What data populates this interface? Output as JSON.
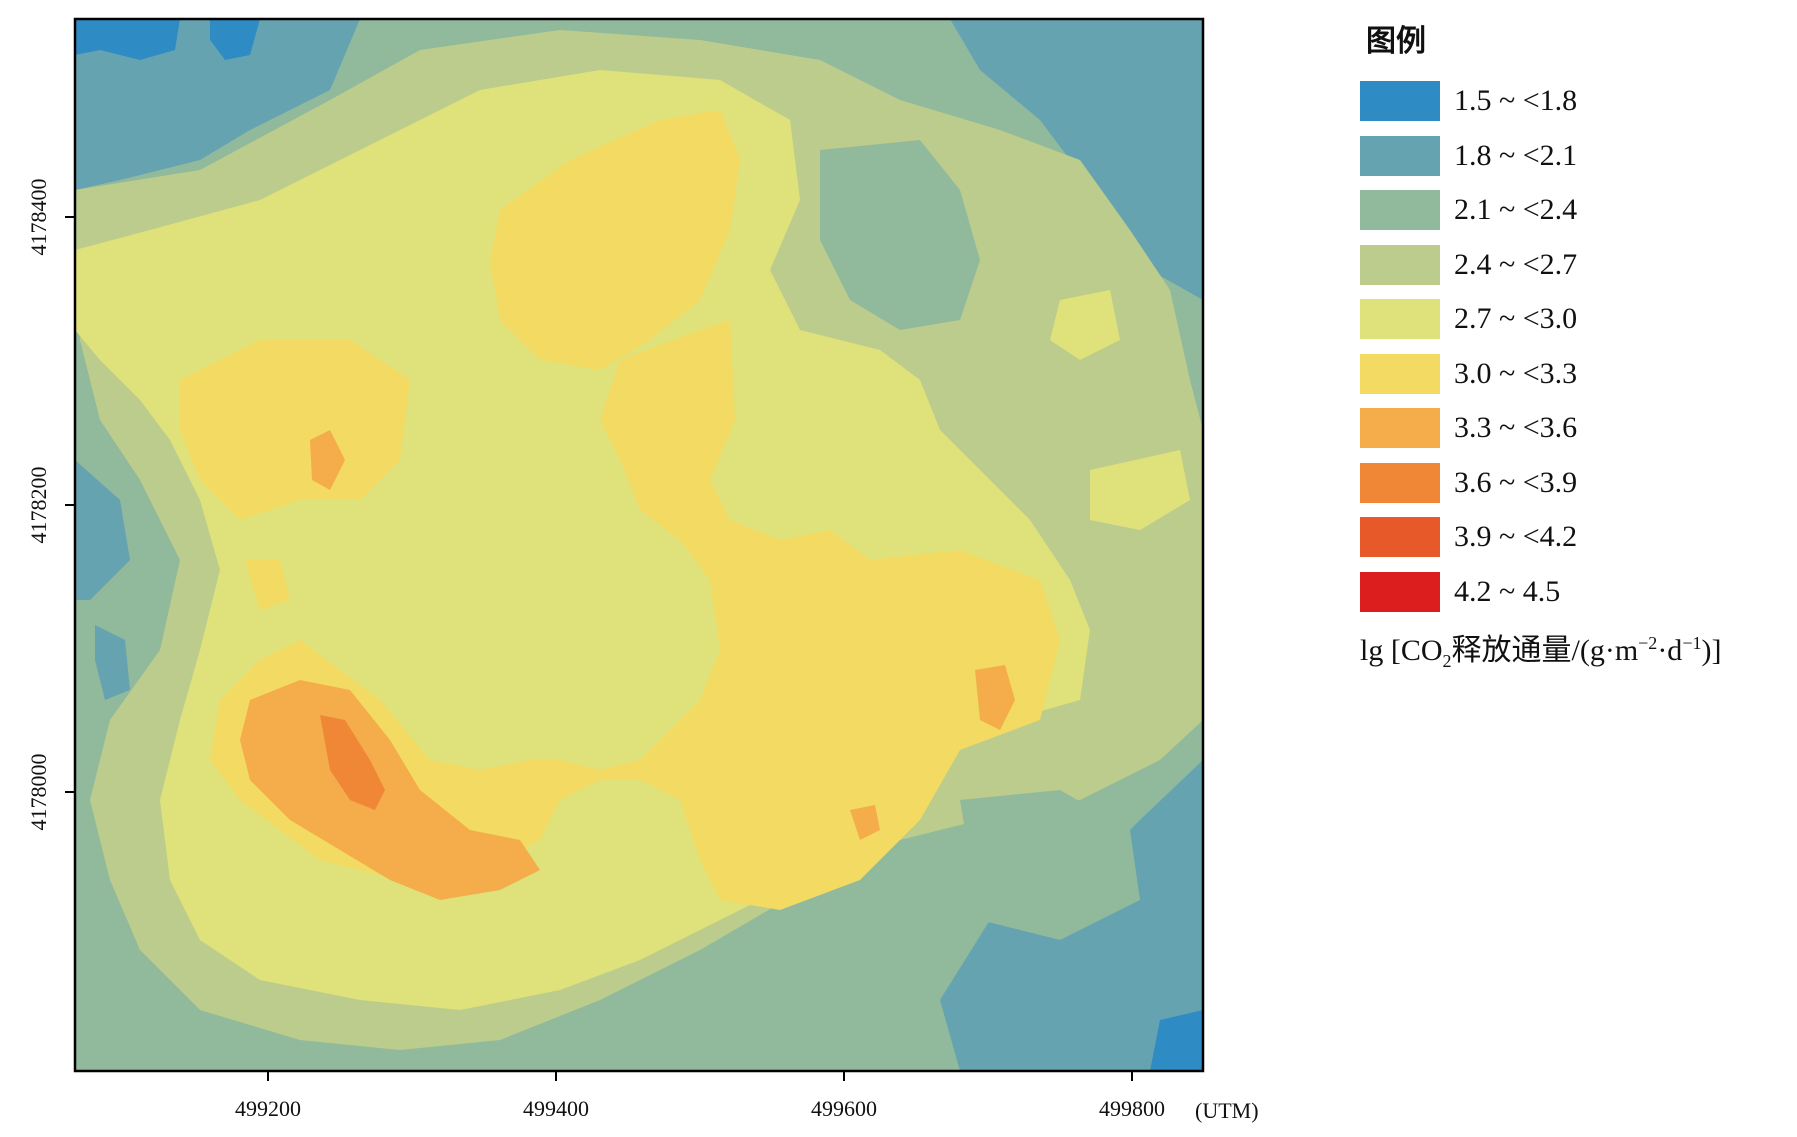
{
  "legend": {
    "title": "图例",
    "items": [
      {
        "label": "1.5 ~ <1.8",
        "color": "#2f8bc4"
      },
      {
        "label": "1.8 ~ <2.1",
        "color": "#66a3b0"
      },
      {
        "label": "2.1 ~ <2.4",
        "color": "#91b99c"
      },
      {
        "label": "2.4 ~ <2.7",
        "color": "#bccc8c"
      },
      {
        "label": "2.7 ~ <3.0",
        "color": "#dfe27a"
      },
      {
        "label": "3.0 ~ <3.3",
        "color": "#f3da62"
      },
      {
        "label": "3.3 ~ <3.6",
        "color": "#f4ad4a"
      },
      {
        "label": "3.6 ~ <3.9",
        "color": "#f08736"
      },
      {
        "label": "3.9 ~ <4.2",
        "color": "#e8592a"
      },
      {
        "label": "4.2 ~ 4.5",
        "color": "#dc1e1e"
      }
    ],
    "unit_prefix": "lg [CO",
    "unit_sub": "2",
    "unit_mid": "释放通量/(g·m",
    "unit_sup1": "−2",
    "unit_mid2": "·d",
    "unit_sup2": "−1",
    "unit_suffix": ")]"
  },
  "axes": {
    "x_ticks": [
      "499200",
      "499400",
      "499600",
      "499800"
    ],
    "x_unit": "(UTM)",
    "y_ticks": [
      "4178400",
      "4178200",
      "4178000"
    ]
  }
}
